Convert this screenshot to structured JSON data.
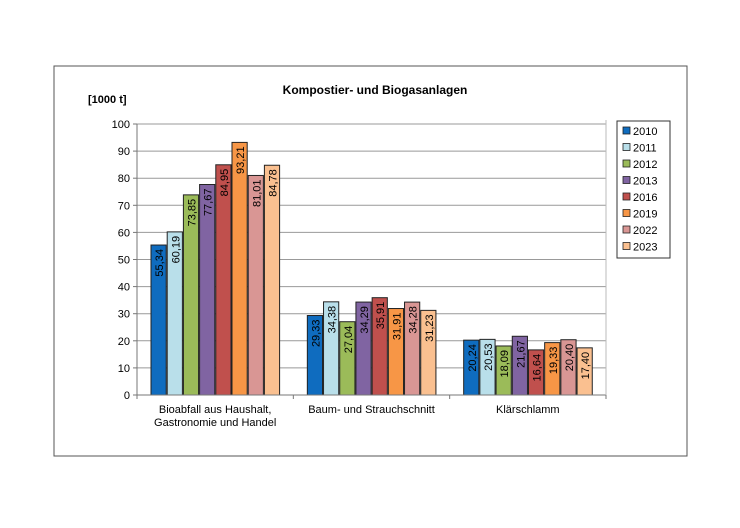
{
  "chart_data": {
    "type": "bar",
    "title": "Kompostier- und Biogasanlagen",
    "ylabel": "[1000 t]",
    "xlabel": "",
    "ylim": [
      0,
      100
    ],
    "yticks": [
      0,
      10,
      20,
      30,
      40,
      50,
      60,
      70,
      80,
      90,
      100
    ],
    "grid": true,
    "legend_position": "right",
    "categories": [
      "Bioabfall aus Haushalt,\nGastronomie und Handel",
      "Baum- und Strauchschnitt",
      "Klärschlamm"
    ],
    "series": [
      {
        "name": "2010",
        "color": "#0f6cbf",
        "values": [
          55.34,
          29.33,
          20.24
        ],
        "labels": [
          "55,34",
          "29,33",
          "20,24"
        ]
      },
      {
        "name": "2011",
        "color": "#b9dfea",
        "values": [
          60.19,
          34.38,
          20.53
        ],
        "labels": [
          "60,19",
          "34,38",
          "20,53"
        ]
      },
      {
        "name": "2012",
        "color": "#9bbb59",
        "values": [
          73.85,
          27.04,
          18.09
        ],
        "labels": [
          "73,85",
          "27,04",
          "18,09"
        ]
      },
      {
        "name": "2013",
        "color": "#8064a2",
        "values": [
          77.67,
          34.29,
          21.67
        ],
        "labels": [
          "77,67",
          "34,29",
          "21,67"
        ]
      },
      {
        "name": "2016",
        "color": "#c0504d",
        "values": [
          84.95,
          35.91,
          16.64
        ],
        "labels": [
          "84,95",
          "35,91",
          "16,64"
        ]
      },
      {
        "name": "2019",
        "color": "#f79646",
        "values": [
          93.21,
          31.91,
          19.33
        ],
        "labels": [
          "93,21",
          "31,91",
          "19,33"
        ]
      },
      {
        "name": "2022",
        "color": "#d99694",
        "values": [
          81.01,
          34.28,
          20.4
        ],
        "labels": [
          "81,01",
          "34,28",
          "20,40"
        ]
      },
      {
        "name": "2023",
        "color": "#fac090",
        "values": [
          84.78,
          31.23,
          17.4
        ],
        "labels": [
          "84,78",
          "31,23",
          "17,40"
        ]
      }
    ]
  }
}
